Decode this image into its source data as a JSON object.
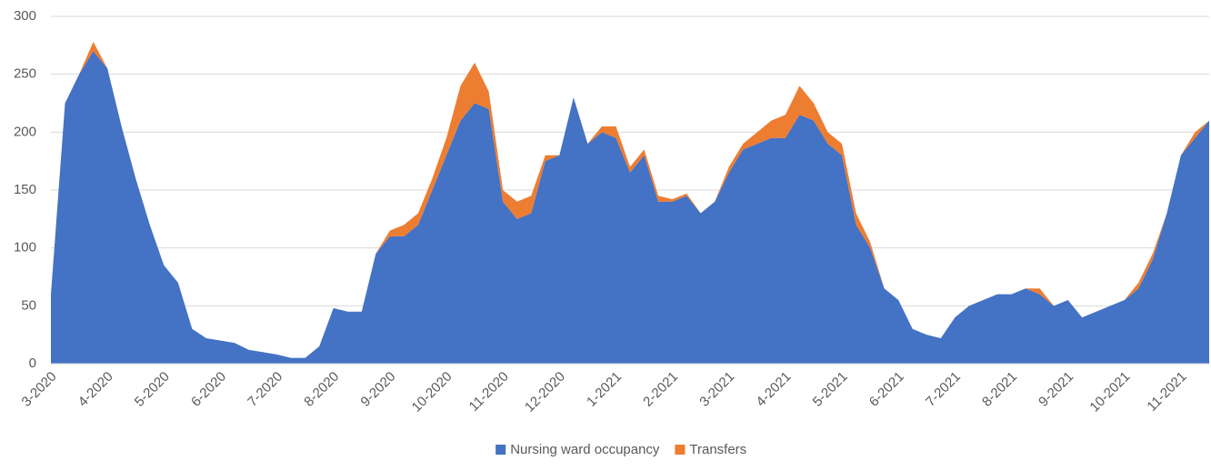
{
  "chart_data": {
    "type": "stacked-area",
    "categories": [
      "3-2020",
      null,
      null,
      null,
      "4-2020",
      null,
      null,
      null,
      "5-2020",
      null,
      null,
      null,
      "6-2020",
      null,
      null,
      null,
      "7-2020",
      null,
      null,
      null,
      "8-2020",
      null,
      null,
      null,
      "9-2020",
      null,
      null,
      null,
      "10-2020",
      null,
      null,
      null,
      "11-2020",
      null,
      null,
      null,
      "12-2020",
      null,
      null,
      null,
      "1-2021",
      null,
      null,
      null,
      "2-2021",
      null,
      null,
      null,
      "3-2021",
      null,
      null,
      null,
      "4-2021",
      null,
      null,
      null,
      "5-2021",
      null,
      null,
      null,
      "6-2021",
      null,
      null,
      null,
      "7-2021",
      null,
      null,
      null,
      "8-2021",
      null,
      null,
      null,
      "9-2021",
      null,
      null,
      null,
      "10-2021",
      null,
      null,
      null,
      "11-2021",
      null,
      null
    ],
    "series": [
      {
        "name": "Nursing ward occupancy",
        "color": "#4472c4",
        "values": [
          60,
          225,
          250,
          270,
          255,
          205,
          160,
          120,
          85,
          70,
          30,
          22,
          20,
          18,
          12,
          10,
          8,
          5,
          5,
          15,
          48,
          45,
          45,
          95,
          110,
          110,
          120,
          150,
          180,
          210,
          225,
          220,
          140,
          125,
          130,
          175,
          180,
          230,
          190,
          200,
          195,
          165,
          180,
          140,
          140,
          145,
          130,
          140,
          165,
          185,
          190,
          195,
          195,
          215,
          210,
          190,
          180,
          120,
          100,
          65,
          55,
          30,
          25,
          22,
          40,
          50,
          55,
          60,
          60,
          65,
          60,
          50,
          55,
          40,
          45,
          50,
          55,
          65,
          90,
          130,
          180,
          195,
          210
        ]
      },
      {
        "name": "Transfers",
        "color": "#ed7d31",
        "values": [
          0,
          0,
          0,
          8,
          0,
          0,
          0,
          0,
          0,
          0,
          0,
          0,
          0,
          0,
          0,
          0,
          0,
          0,
          0,
          0,
          0,
          0,
          0,
          0,
          5,
          10,
          10,
          10,
          15,
          30,
          35,
          15,
          10,
          15,
          15,
          5,
          0,
          0,
          0,
          5,
          10,
          5,
          5,
          5,
          2,
          2,
          0,
          0,
          5,
          5,
          10,
          15,
          20,
          25,
          15,
          10,
          10,
          10,
          5,
          0,
          0,
          0,
          0,
          0,
          0,
          0,
          0,
          0,
          0,
          0,
          5,
          0,
          0,
          0,
          0,
          0,
          0,
          5,
          5,
          0,
          0,
          5,
          0
        ]
      }
    ],
    "ylim": [
      0,
      300
    ],
    "yticks": [
      0,
      50,
      100,
      150,
      200,
      250,
      300
    ],
    "grid": true,
    "legend": "bottom"
  }
}
